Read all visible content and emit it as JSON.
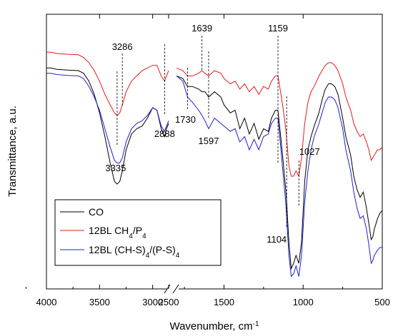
{
  "chart_data": {
    "type": "line",
    "title": "",
    "xlabel": "Wavenumber, cm",
    "xlabel_sup": "-1",
    "ylabel": "Transmittance, a.u.",
    "x_axis": {
      "direction": "decreasing",
      "broken": true,
      "segments": [
        [
          4000,
          2850
        ],
        [
          1800,
          500
        ]
      ],
      "tick_labels": [
        "4000",
        "3500",
        "3000",
        "2500",
        "1500",
        "1000",
        "500"
      ]
    },
    "y_axis": {
      "tick_labels": []
    },
    "grid": false,
    "legend_position": "bottom-left",
    "legend": [
      {
        "label": "CO",
        "color": "#000000"
      },
      {
        "label": "12BL CH",
        "sub1": "4",
        "mid": "/P",
        "sub2": "4",
        "tail": "",
        "color": "#e31a1c"
      },
      {
        "label": "12BL (CH-S)",
        "sub1": "4",
        "mid": "/(P-S)",
        "sub2": "4",
        "tail": "",
        "color": "#1f1fd6"
      }
    ],
    "series": [
      {
        "name": "CO",
        "color": "#000000",
        "points": [
          [
            3999,
            0.19
          ],
          [
            3960,
            0.19
          ],
          [
            3900,
            0.195
          ],
          [
            3800,
            0.198
          ],
          [
            3700,
            0.2
          ],
          [
            3650,
            0.21
          ],
          [
            3600,
            0.24
          ],
          [
            3550,
            0.29
          ],
          [
            3500,
            0.36
          ],
          [
            3450,
            0.45
          ],
          [
            3400,
            0.55
          ],
          [
            3360,
            0.62
          ],
          [
            3335,
            0.63
          ],
          [
            3310,
            0.62
          ],
          [
            3286,
            0.58
          ],
          [
            3250,
            0.5
          ],
          [
            3200,
            0.44
          ],
          [
            3150,
            0.42
          ],
          [
            3100,
            0.41
          ],
          [
            3050,
            0.38
          ],
          [
            3000,
            0.34
          ],
          [
            2960,
            0.35
          ],
          [
            2920,
            0.42
          ],
          [
            2888,
            0.45
          ],
          [
            2870,
            0.42
          ],
          [
            2850,
            0.4
          ],
          [
            1800,
            0.22
          ],
          [
            1760,
            0.23
          ],
          [
            1730,
            0.26
          ],
          [
            1700,
            0.26
          ],
          [
            1660,
            0.27
          ],
          [
            1639,
            0.28
          ],
          [
            1620,
            0.28
          ],
          [
            1597,
            0.3
          ],
          [
            1560,
            0.28
          ],
          [
            1520,
            0.3
          ],
          [
            1500,
            0.33
          ],
          [
            1460,
            0.36
          ],
          [
            1430,
            0.35
          ],
          [
            1400,
            0.42
          ],
          [
            1370,
            0.38
          ],
          [
            1340,
            0.44
          ],
          [
            1310,
            0.4
          ],
          [
            1280,
            0.46
          ],
          [
            1250,
            0.42
          ],
          [
            1220,
            0.43
          ],
          [
            1200,
            0.38
          ],
          [
            1175,
            0.35
          ],
          [
            1159,
            0.35
          ],
          [
            1140,
            0.46
          ],
          [
            1125,
            0.55
          ],
          [
            1110,
            0.65
          ],
          [
            1104,
            0.7
          ],
          [
            1090,
            0.85
          ],
          [
            1075,
            0.95
          ],
          [
            1060,
            0.93
          ],
          [
            1045,
            0.9
          ],
          [
            1027,
            0.93
          ],
          [
            1010,
            0.85
          ],
          [
            990,
            0.62
          ],
          [
            970,
            0.5
          ],
          [
            950,
            0.45
          ],
          [
            930,
            0.41
          ],
          [
            900,
            0.36
          ],
          [
            880,
            0.31
          ],
          [
            860,
            0.27
          ],
          [
            840,
            0.25
          ],
          [
            820,
            0.25
          ],
          [
            800,
            0.26
          ],
          [
            780,
            0.29
          ],
          [
            750,
            0.38
          ],
          [
            730,
            0.45
          ],
          [
            700,
            0.52
          ],
          [
            680,
            0.6
          ],
          [
            660,
            0.65
          ],
          [
            640,
            0.68
          ],
          [
            620,
            0.66
          ],
          [
            600,
            0.72
          ],
          [
            585,
            0.78
          ],
          [
            570,
            0.84
          ],
          [
            560,
            0.83
          ],
          [
            550,
            0.8
          ],
          [
            530,
            0.76
          ],
          [
            515,
            0.74
          ],
          [
            500,
            0.73
          ]
        ]
      },
      {
        "name": "12BL CH4/P4",
        "color": "#e31a1c",
        "points": [
          [
            3999,
            0.13
          ],
          [
            3960,
            0.13
          ],
          [
            3900,
            0.135
          ],
          [
            3800,
            0.138
          ],
          [
            3700,
            0.14
          ],
          [
            3650,
            0.15
          ],
          [
            3600,
            0.17
          ],
          [
            3550,
            0.2
          ],
          [
            3500,
            0.24
          ],
          [
            3450,
            0.29
          ],
          [
            3400,
            0.33
          ],
          [
            3360,
            0.36
          ],
          [
            3335,
            0.37
          ],
          [
            3310,
            0.36
          ],
          [
            3286,
            0.33
          ],
          [
            3250,
            0.28
          ],
          [
            3200,
            0.24
          ],
          [
            3150,
            0.22
          ],
          [
            3100,
            0.2
          ],
          [
            3050,
            0.19
          ],
          [
            3000,
            0.18
          ],
          [
            2960,
            0.18
          ],
          [
            2920,
            0.22
          ],
          [
            2888,
            0.24
          ],
          [
            2870,
            0.22
          ],
          [
            2850,
            0.2
          ],
          [
            1800,
            0.19
          ],
          [
            1760,
            0.2
          ],
          [
            1730,
            0.22
          ],
          [
            1700,
            0.22
          ],
          [
            1660,
            0.21
          ],
          [
            1639,
            0.2
          ],
          [
            1620,
            0.21
          ],
          [
            1597,
            0.22
          ],
          [
            1560,
            0.2
          ],
          [
            1520,
            0.21
          ],
          [
            1500,
            0.23
          ],
          [
            1460,
            0.25
          ],
          [
            1430,
            0.24
          ],
          [
            1400,
            0.27
          ],
          [
            1370,
            0.25
          ],
          [
            1340,
            0.28
          ],
          [
            1310,
            0.26
          ],
          [
            1280,
            0.29
          ],
          [
            1250,
            0.26
          ],
          [
            1220,
            0.27
          ],
          [
            1200,
            0.24
          ],
          [
            1175,
            0.22
          ],
          [
            1159,
            0.22
          ],
          [
            1140,
            0.29
          ],
          [
            1125,
            0.35
          ],
          [
            1110,
            0.42
          ],
          [
            1104,
            0.46
          ],
          [
            1090,
            0.56
          ],
          [
            1075,
            0.6
          ],
          [
            1060,
            0.6
          ],
          [
            1045,
            0.58
          ],
          [
            1027,
            0.6
          ],
          [
            1010,
            0.53
          ],
          [
            990,
            0.4
          ],
          [
            970,
            0.32
          ],
          [
            950,
            0.28
          ],
          [
            930,
            0.26
          ],
          [
            900,
            0.22
          ],
          [
            880,
            0.2
          ],
          [
            860,
            0.18
          ],
          [
            840,
            0.17
          ],
          [
            820,
            0.17
          ],
          [
            800,
            0.18
          ],
          [
            780,
            0.2
          ],
          [
            750,
            0.25
          ],
          [
            730,
            0.3
          ],
          [
            700,
            0.35
          ],
          [
            680,
            0.4
          ],
          [
            660,
            0.43
          ],
          [
            640,
            0.45
          ],
          [
            620,
            0.44
          ],
          [
            600,
            0.47
          ],
          [
            585,
            0.5
          ],
          [
            570,
            0.54
          ],
          [
            560,
            0.53
          ],
          [
            550,
            0.52
          ],
          [
            530,
            0.5
          ],
          [
            515,
            0.5
          ],
          [
            500,
            0.49
          ]
        ]
      },
      {
        "name": "12BL (CH-S)4/(P-S)4",
        "color": "#1f1fd6",
        "points": [
          [
            3999,
            0.21
          ],
          [
            3960,
            0.21
          ],
          [
            3900,
            0.215
          ],
          [
            3800,
            0.218
          ],
          [
            3700,
            0.22
          ],
          [
            3650,
            0.23
          ],
          [
            3600,
            0.26
          ],
          [
            3550,
            0.3
          ],
          [
            3500,
            0.35
          ],
          [
            3450,
            0.42
          ],
          [
            3400,
            0.49
          ],
          [
            3360,
            0.54
          ],
          [
            3335,
            0.55
          ],
          [
            3310,
            0.55
          ],
          [
            3286,
            0.53
          ],
          [
            3250,
            0.47
          ],
          [
            3200,
            0.42
          ],
          [
            3150,
            0.4
          ],
          [
            3100,
            0.39
          ],
          [
            3050,
            0.37
          ],
          [
            3000,
            0.34
          ],
          [
            2960,
            0.35
          ],
          [
            2920,
            0.41
          ],
          [
            2888,
            0.43
          ],
          [
            2870,
            0.41
          ],
          [
            2850,
            0.39
          ],
          [
            1800,
            0.22
          ],
          [
            1760,
            0.24
          ],
          [
            1730,
            0.3
          ],
          [
            1700,
            0.32
          ],
          [
            1660,
            0.35
          ],
          [
            1639,
            0.37
          ],
          [
            1620,
            0.39
          ],
          [
            1597,
            0.42
          ],
          [
            1560,
            0.38
          ],
          [
            1520,
            0.4
          ],
          [
            1500,
            0.41
          ],
          [
            1460,
            0.43
          ],
          [
            1430,
            0.42
          ],
          [
            1400,
            0.47
          ],
          [
            1370,
            0.45
          ],
          [
            1340,
            0.5
          ],
          [
            1310,
            0.46
          ],
          [
            1280,
            0.5
          ],
          [
            1250,
            0.45
          ],
          [
            1220,
            0.44
          ],
          [
            1200,
            0.4
          ],
          [
            1175,
            0.38
          ],
          [
            1159,
            0.38
          ],
          [
            1140,
            0.5
          ],
          [
            1125,
            0.6
          ],
          [
            1110,
            0.7
          ],
          [
            1104,
            0.76
          ],
          [
            1090,
            0.9
          ],
          [
            1075,
            0.98
          ],
          [
            1060,
            0.97
          ],
          [
            1045,
            0.94
          ],
          [
            1027,
            0.98
          ],
          [
            1010,
            0.9
          ],
          [
            990,
            0.7
          ],
          [
            970,
            0.58
          ],
          [
            950,
            0.5
          ],
          [
            930,
            0.45
          ],
          [
            900,
            0.4
          ],
          [
            880,
            0.36
          ],
          [
            860,
            0.32
          ],
          [
            840,
            0.3
          ],
          [
            820,
            0.3
          ],
          [
            800,
            0.31
          ],
          [
            780,
            0.34
          ],
          [
            750,
            0.42
          ],
          [
            730,
            0.5
          ],
          [
            700,
            0.58
          ],
          [
            680,
            0.66
          ],
          [
            660,
            0.72
          ],
          [
            640,
            0.76
          ],
          [
            620,
            0.75
          ],
          [
            600,
            0.8
          ],
          [
            585,
            0.86
          ],
          [
            570,
            0.93
          ],
          [
            560,
            0.92
          ],
          [
            550,
            0.9
          ],
          [
            530,
            0.88
          ],
          [
            515,
            0.87
          ],
          [
            500,
            0.87
          ]
        ]
      }
    ],
    "annotations": [
      {
        "label": "3286",
        "x": 3286,
        "label_side": "top"
      },
      {
        "label": "3335",
        "x": 3335,
        "label_side": "bottom"
      },
      {
        "label": "2888",
        "x": 2888,
        "label_side": "bottom"
      },
      {
        "label": "1639",
        "x": 1639,
        "label_side": "top"
      },
      {
        "label": "1730",
        "x": 1730,
        "label_side": "bottom"
      },
      {
        "label": "1597",
        "x": 1597,
        "label_side": "bottom"
      },
      {
        "label": "1159",
        "x": 1159,
        "label_side": "top"
      },
      {
        "label": "1027",
        "x": 1027,
        "label_side": "top"
      },
      {
        "label": "1104",
        "x": 1104,
        "label_side": "bottom"
      }
    ]
  }
}
